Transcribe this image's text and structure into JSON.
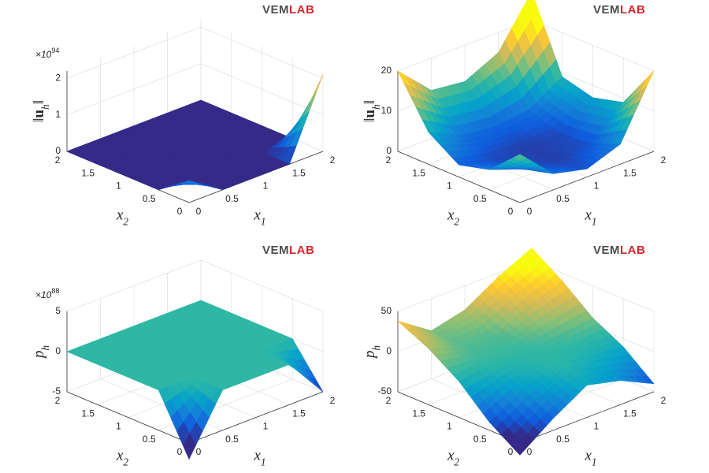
{
  "chart_data": [
    {
      "type": "surface",
      "logo": [
        "VEM",
        "LAB"
      ],
      "z_exponent": {
        "text": "×10",
        "sup": "94"
      },
      "xlabel": {
        "text": "x",
        "sub": "1"
      },
      "ylabel": {
        "text": "x",
        "sub": "2"
      },
      "zlabel": {
        "pre": "‖",
        "text": "u",
        "bold": true,
        "sub": "h",
        "post": "‖"
      },
      "x": [
        0,
        0.5,
        1,
        1.5,
        2
      ],
      "y": [
        0,
        0.5,
        1,
        1.5,
        2
      ],
      "z": [
        [
          0.6,
          0,
          0,
          0,
          2.1
        ],
        [
          0,
          0,
          0,
          0,
          0
        ],
        [
          0,
          0,
          0,
          0,
          0
        ],
        [
          0,
          0,
          0,
          0,
          0
        ],
        [
          0,
          0,
          0,
          0,
          0
        ]
      ],
      "xlim": [
        0,
        2
      ],
      "ylim": [
        0,
        2
      ],
      "zlim": [
        0,
        2.2
      ],
      "xticks": [
        0,
        0.5,
        1,
        1.5,
        2
      ],
      "yticks": [
        0,
        0.5,
        1,
        1.5,
        2
      ],
      "zticks": [
        0,
        1,
        2
      ],
      "grid": true,
      "colormap": "parula"
    },
    {
      "type": "surface",
      "logo": [
        "VEM",
        "LAB"
      ],
      "xlabel": {
        "text": "x",
        "sub": "1"
      },
      "ylabel": {
        "text": "x",
        "sub": "2"
      },
      "zlabel": {
        "pre": "‖",
        "text": "u",
        "bold": true,
        "sub": "h",
        "post": "‖"
      },
      "x": [
        0,
        0.5,
        1,
        1.5,
        2
      ],
      "y": [
        0,
        0.5,
        1,
        1.5,
        2
      ],
      "z": [
        [
          12,
          4,
          2,
          5,
          20
        ],
        [
          5,
          2,
          1,
          2,
          9
        ],
        [
          3,
          1.5,
          1,
          1.5,
          7
        ],
        [
          8,
          4,
          3,
          4,
          9
        ],
        [
          20,
          12,
          11,
          15,
          27
        ]
      ],
      "xlim": [
        0,
        2
      ],
      "ylim": [
        0,
        2
      ],
      "zlim": [
        0,
        20
      ],
      "xticks": [
        0,
        0.5,
        1,
        1.5,
        2
      ],
      "yticks": [
        0,
        0.5,
        1,
        1.5,
        2
      ],
      "zticks": [
        0,
        10,
        20
      ],
      "grid": true,
      "colormap": "parula"
    },
    {
      "type": "surface",
      "logo": [
        "VEM",
        "LAB"
      ],
      "z_exponent": {
        "text": "×10",
        "sup": "88"
      },
      "xlabel": {
        "text": "x",
        "sub": "1"
      },
      "ylabel": {
        "text": "x",
        "sub": "2"
      },
      "zlabel": {
        "text": "p",
        "sub": "h"
      },
      "x": [
        0,
        0.5,
        1,
        1.5,
        2
      ],
      "y": [
        0,
        0.5,
        1,
        1.5,
        2
      ],
      "z": [
        [
          -7,
          0,
          0,
          0,
          -5
        ],
        [
          0,
          0,
          0,
          0,
          0
        ],
        [
          0,
          0,
          0,
          0,
          0
        ],
        [
          0,
          0,
          0,
          0,
          0
        ],
        [
          0,
          0,
          0,
          0,
          0
        ]
      ],
      "xlim": [
        0,
        2
      ],
      "ylim": [
        0,
        2
      ],
      "zlim": [
        -5,
        5
      ],
      "xticks": [
        0,
        0.5,
        1,
        1.5,
        2
      ],
      "yticks": [
        0,
        0.5,
        1,
        1.5,
        2
      ],
      "zticks": [
        -5,
        0,
        5
      ],
      "grid": true,
      "colormap": "parula"
    },
    {
      "type": "surface",
      "logo": [
        "VEM",
        "LAB"
      ],
      "xlabel": {
        "text": "x",
        "sub": "1"
      },
      "ylabel": {
        "text": "x",
        "sub": "2"
      },
      "zlabel": {
        "text": "p",
        "sub": "h"
      },
      "x": [
        0,
        0.5,
        1,
        1.5,
        2
      ],
      "y": [
        0,
        0.5,
        1,
        1.5,
        2
      ],
      "z": [
        [
          -65,
          -35,
          -10,
          -20,
          -40
        ],
        [
          -40,
          -15,
          0,
          -5,
          -10
        ],
        [
          -5,
          0,
          0,
          5,
          10
        ],
        [
          20,
          5,
          5,
          25,
          40
        ],
        [
          38,
          10,
          20,
          45,
          65
        ]
      ],
      "xlim": [
        0,
        2
      ],
      "ylim": [
        0,
        2
      ],
      "zlim": [
        -50,
        50
      ],
      "xticks": [
        0,
        0.5,
        1,
        1.5,
        2
      ],
      "yticks": [
        0,
        0.5,
        1,
        1.5,
        2
      ],
      "zticks": [
        -50,
        0,
        50
      ],
      "grid": true,
      "colormap": "parula"
    }
  ]
}
